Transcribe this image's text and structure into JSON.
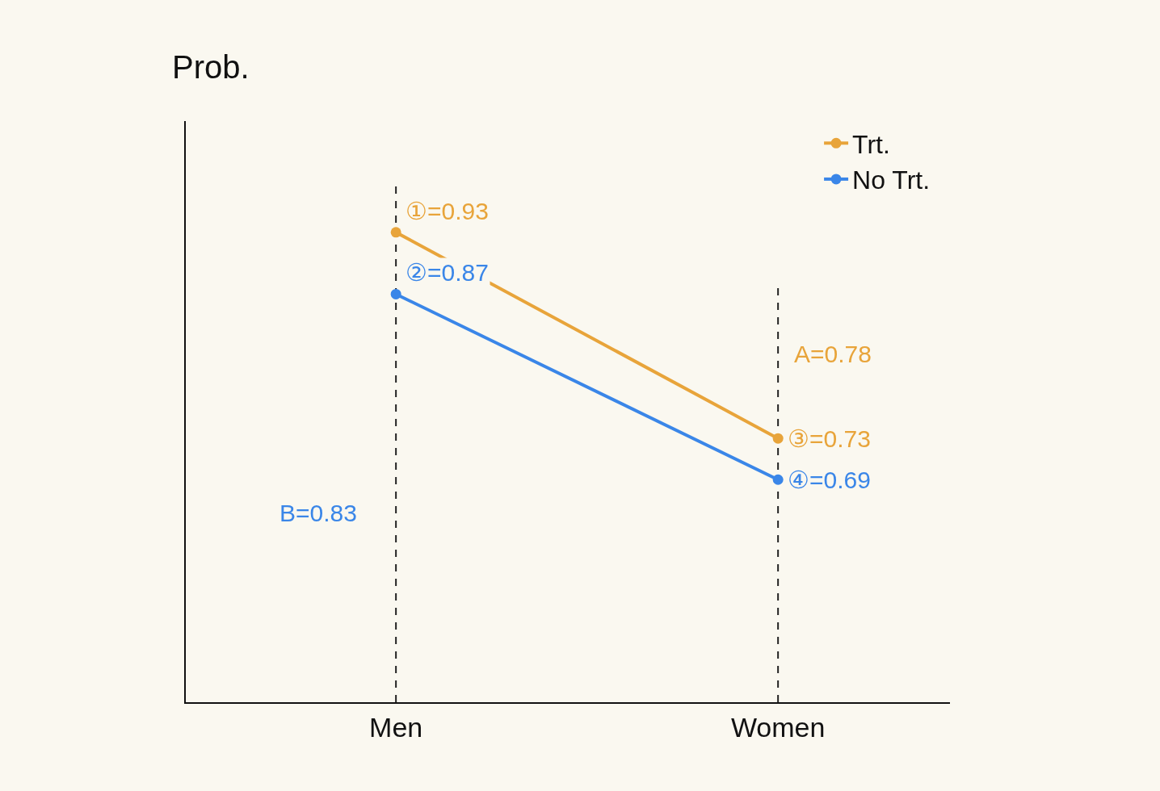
{
  "chart_data": {
    "type": "line",
    "ylabel": "Prob.",
    "categories": [
      "Men",
      "Women"
    ],
    "series": [
      {
        "name": "Trt.",
        "color": "#e8a43a",
        "values": [
          0.93,
          0.73
        ],
        "value_labels": [
          "①=0.93",
          "③=0.73"
        ]
      },
      {
        "name": "No Trt.",
        "color": "#3a86e8",
        "values": [
          0.87,
          0.69
        ],
        "value_labels": [
          "②=0.87",
          "④=0.69"
        ]
      }
    ],
    "annotations": [
      "A=0.78",
      "B=0.83"
    ],
    "ref_lines": [
      {
        "axis": "x",
        "value": "Men",
        "color": "#222222",
        "line_style": "dashed"
      },
      {
        "axis": "x",
        "value": "Women",
        "color": "#222222",
        "line_style": "dashed"
      }
    ],
    "marker": "circle",
    "line_style": "solid",
    "legend": "top right",
    "tick_labels": "x"
  }
}
